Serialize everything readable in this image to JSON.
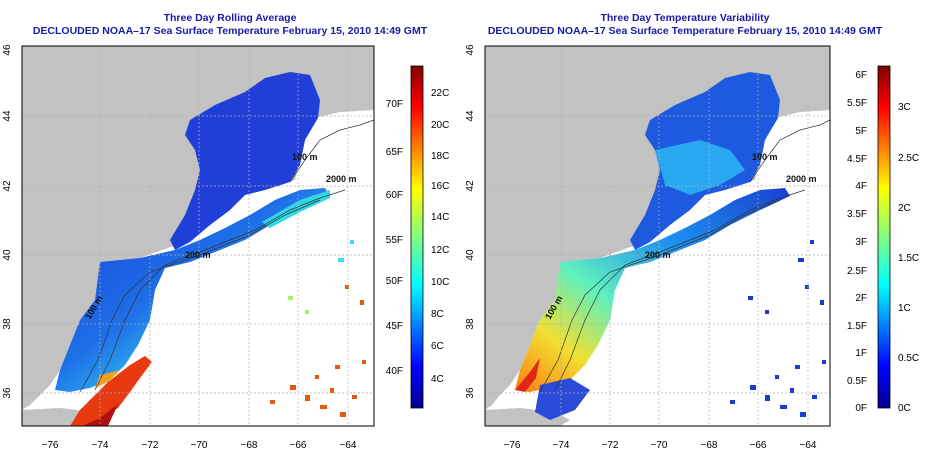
{
  "left_panel": {
    "title1": "Three Day Rolling Average",
    "title2": "DECLOUDED NOAA–17 Sea Surface Temperature February 15, 2010 14:49 GMT",
    "colorbar": {
      "f_labels": [
        "40F",
        "45F",
        "50F",
        "55F",
        "60F",
        "65F",
        "70F"
      ],
      "c_labels": [
        "4C",
        "6C",
        "8C",
        "10C",
        "12C",
        "14C",
        "16C",
        "18C",
        "20C",
        "22C"
      ]
    }
  },
  "right_panel": {
    "title1": "Three Day Temperature Variability",
    "title2": "DECLOUDED NOAA–17 Sea Surface Temperature February 15, 2010 14:49 GMT",
    "colorbar": {
      "f_labels": [
        "0F",
        "0.5F",
        "1F",
        "1.5F",
        "2F",
        "2.5F",
        "3F",
        "3.5F",
        "4F",
        "4.5F",
        "5F",
        "5.5F",
        "6F"
      ],
      "c_labels": [
        "0C",
        "0.5C",
        "1C",
        "1.5C",
        "2C",
        "2.5C",
        "3C"
      ]
    }
  },
  "axes": {
    "lon_ticks": [
      "−76",
      "−74",
      "−72",
      "−70",
      "−68",
      "−66",
      "−64"
    ],
    "lat_ticks": [
      "36",
      "38",
      "40",
      "42",
      "44",
      "46"
    ]
  },
  "contour_labels": [
    "200 m",
    "100 m",
    "2000 m",
    "100 m"
  ],
  "colors": {
    "land": "#c2c2c2",
    "title": "#1a1aa6",
    "grid": "#b0b0b0"
  }
}
